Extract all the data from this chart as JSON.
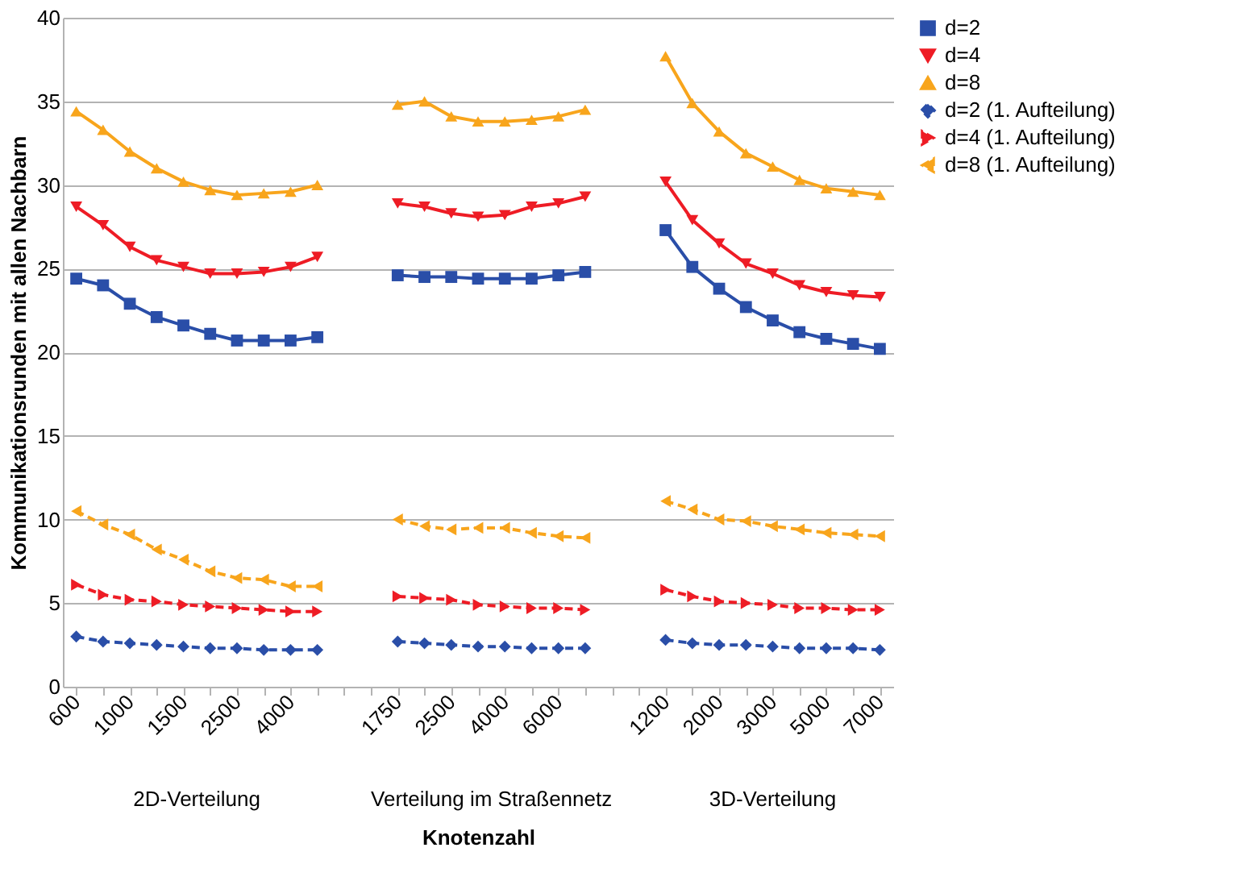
{
  "chart_data": {
    "type": "line",
    "xlabel": "Knotenzahl",
    "ylabel": "Kommunikationsrunden mit allen Nachbarn",
    "categories": [
      "600",
      null,
      "1000",
      null,
      "1500",
      null,
      "2500",
      null,
      "4000",
      null,
      null,
      null,
      "1750",
      null,
      "2500",
      null,
      "4000",
      null,
      "6000",
      null,
      null,
      null,
      "1200",
      null,
      "2000",
      null,
      "3000",
      null,
      "5000",
      null,
      "7000"
    ],
    "ylim": [
      0,
      40
    ],
    "yticks": [
      0,
      5,
      10,
      15,
      20,
      25,
      30,
      35,
      40
    ],
    "grid": "y",
    "legend": "right",
    "annotations": [
      "2D-Verteilung",
      "Verteilung im Straßennetz",
      "3D-Verteilung"
    ],
    "series": [
      {
        "name": "d=2",
        "color": "#2a4ea8",
        "marker": "square",
        "line_style": "solid",
        "values": [
          24.4,
          24.0,
          22.9,
          22.1,
          21.6,
          21.1,
          20.7,
          20.7,
          20.7,
          20.9,
          null,
          null,
          24.6,
          24.5,
          24.5,
          24.4,
          24.4,
          24.4,
          24.6,
          24.8,
          null,
          null,
          27.3,
          25.1,
          23.8,
          22.7,
          21.9,
          21.2,
          20.8,
          20.5,
          20.2
        ]
      },
      {
        "name": "d=4",
        "color": "#ee1c25",
        "marker": "triangle-down",
        "line_style": "solid",
        "values": [
          28.7,
          27.6,
          26.3,
          25.5,
          25.1,
          24.7,
          24.7,
          24.8,
          25.1,
          25.7,
          null,
          null,
          28.9,
          28.7,
          28.3,
          28.1,
          28.2,
          28.7,
          28.9,
          29.3,
          null,
          null,
          30.2,
          27.9,
          26.5,
          25.3,
          24.7,
          24.0,
          23.6,
          23.4,
          23.3
        ]
      },
      {
        "name": "d=8",
        "color": "#f8a51c",
        "marker": "triangle-up",
        "line_style": "solid",
        "values": [
          34.4,
          33.3,
          32.0,
          31.0,
          30.2,
          29.7,
          29.4,
          29.5,
          29.6,
          30.0,
          null,
          null,
          34.8,
          35.0,
          34.1,
          33.8,
          33.8,
          33.9,
          34.1,
          34.5,
          null,
          null,
          37.7,
          34.9,
          33.2,
          31.9,
          31.1,
          30.3,
          29.8,
          29.6,
          29.4
        ]
      },
      {
        "name": "d=2 (1. Aufteilung)",
        "color": "#2a4ea8",
        "marker": "diamond",
        "line_style": "dashed",
        "values": [
          3.0,
          2.7,
          2.6,
          2.5,
          2.4,
          2.3,
          2.3,
          2.2,
          2.2,
          2.2,
          null,
          null,
          2.7,
          2.6,
          2.5,
          2.4,
          2.4,
          2.3,
          2.3,
          2.3,
          null,
          null,
          2.8,
          2.6,
          2.5,
          2.5,
          2.4,
          2.3,
          2.3,
          2.3,
          2.2
        ]
      },
      {
        "name": "d=4 (1. Aufteilung)",
        "color": "#ee1c25",
        "marker": "triangle-right",
        "line_style": "dashed",
        "values": [
          6.1,
          5.5,
          5.2,
          5.1,
          4.9,
          4.8,
          4.7,
          4.6,
          4.5,
          4.5,
          null,
          null,
          5.4,
          5.3,
          5.2,
          4.9,
          4.8,
          4.7,
          4.7,
          4.6,
          null,
          null,
          5.8,
          5.4,
          5.1,
          5.0,
          4.9,
          4.7,
          4.7,
          4.6,
          4.6
        ]
      },
      {
        "name": "d=8 (1. Aufteilung)",
        "color": "#f8a51c",
        "marker": "triangle-left",
        "line_style": "dashed",
        "values": [
          10.5,
          9.7,
          9.1,
          8.2,
          7.6,
          6.9,
          6.5,
          6.4,
          6.0,
          6.0,
          null,
          null,
          10.0,
          9.6,
          9.4,
          9.5,
          9.5,
          9.2,
          9.0,
          8.9,
          null,
          null,
          11.1,
          10.6,
          10.0,
          9.9,
          9.6,
          9.4,
          9.2,
          9.1,
          9.0
        ]
      }
    ]
  }
}
